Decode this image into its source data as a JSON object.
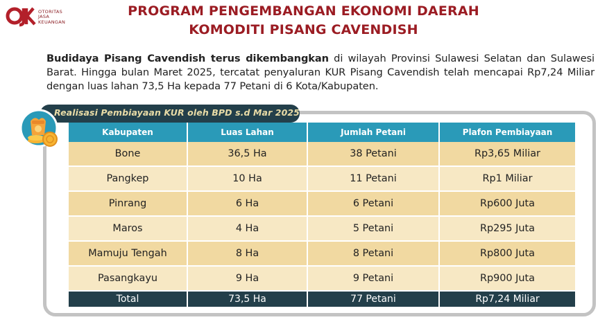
{
  "logo": {
    "mark": "OJK",
    "lines": [
      "OTORITAS",
      "JASA",
      "KEUANGAN"
    ]
  },
  "title_line1": "PROGRAM PENGEMBANGAN EKONOMI DAERAH",
  "title_line2": "KOMODITI PISANG CAVENDISH",
  "intro_bold": "Budidaya Pisang Cavendish terus dikembangkan",
  "intro_rest": " di wilayah Provinsi Sulawesi Selatan dan Sulawesi Barat. Hingga bulan Maret 2025, tercatat penyaluran KUR Pisang Cavendish telah mencapai Rp7,24 Miliar dengan luas lahan 73,5 Ha kepada 77 Petani di 6 Kota/Kabupaten.",
  "banner_title": "Realisasi Pembiayaan KUR oleh BPD s.d Mar 2025",
  "badge_icon": "money-bag-coins-icon",
  "colors": {
    "title": "#9b1c23",
    "header": "#2a9ab8",
    "row_dark": "#f1d9a1",
    "row_light": "#f7e8c4",
    "total": "#233f4a"
  },
  "table": {
    "headers": [
      "Kabupaten",
      "Luas Lahan",
      "Jumlah Petani",
      "Plafon Pembiayaan"
    ],
    "rows": [
      [
        "Bone",
        "36,5 Ha",
        "38 Petani",
        "Rp3,65 Miliar"
      ],
      [
        "Pangkep",
        "10 Ha",
        "11 Petani",
        "Rp1 Miliar"
      ],
      [
        "Pinrang",
        "6 Ha",
        "6 Petani",
        "Rp600 Juta"
      ],
      [
        "Maros",
        "4 Ha",
        "5 Petani",
        "Rp295 Juta"
      ],
      [
        "Mamuju Tengah",
        "8 Ha",
        "8 Petani",
        "Rp800 Juta"
      ],
      [
        "Pasangkayu",
        "9 Ha",
        "9 Petani",
        "Rp900 Juta"
      ]
    ],
    "total": [
      "Total",
      "73,5 Ha",
      "77 Petani",
      "Rp7,24 Miliar"
    ]
  }
}
